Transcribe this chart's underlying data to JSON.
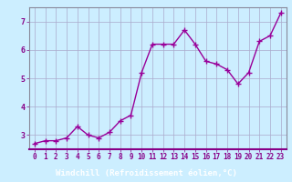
{
  "x": [
    0,
    1,
    2,
    3,
    4,
    5,
    6,
    7,
    8,
    9,
    10,
    11,
    12,
    13,
    14,
    15,
    16,
    17,
    18,
    19,
    20,
    21,
    22,
    23
  ],
  "y": [
    2.7,
    2.8,
    2.8,
    2.9,
    3.3,
    3.0,
    2.9,
    3.1,
    3.5,
    3.7,
    5.2,
    6.2,
    6.2,
    6.2,
    6.7,
    6.2,
    5.6,
    5.5,
    5.3,
    4.8,
    5.2,
    6.3,
    6.5,
    7.3
  ],
  "line_color": "#990099",
  "marker": "+",
  "markersize": 4,
  "linewidth": 1.0,
  "bg_color": "#cceeff",
  "grid_color": "#aaaacc",
  "xlabel": "Windchill (Refroidissement éolien,°C)",
  "xlabel_bar_color": "#880088",
  "xlabel_text_color": "#ffffff",
  "ylim": [
    2.5,
    7.5
  ],
  "xlim": [
    -0.5,
    23.5
  ],
  "yticks": [
    3,
    4,
    5,
    6,
    7
  ],
  "xticks": [
    0,
    1,
    2,
    3,
    4,
    5,
    6,
    7,
    8,
    9,
    10,
    11,
    12,
    13,
    14,
    15,
    16,
    17,
    18,
    19,
    20,
    21,
    22,
    23
  ],
  "tick_fontsize": 5.5,
  "xlabel_fontsize": 6.5,
  "spine_color": "#888899"
}
